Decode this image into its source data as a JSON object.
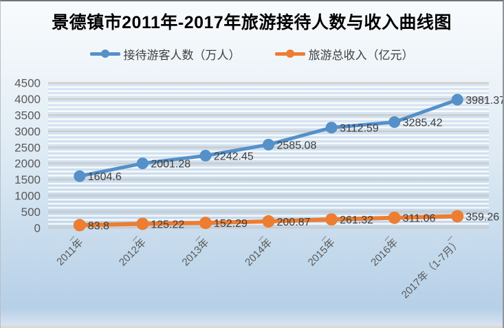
{
  "title": "景德镇市2011年-2017年旅游接待人数与收入曲线图",
  "legend": [
    {
      "label": "接待游客人数（万人）"
    },
    {
      "label": "旅游总收入（亿元）"
    }
  ],
  "colors": {
    "visitors_series": "#5590C9",
    "revenue_series": "#ED7D31",
    "axis_text": "#595959",
    "data_label_text": "#3d3d3d",
    "gridline": "#ccc9c2"
  },
  "chart_data": {
    "type": "line",
    "title": "景德镇市2011年-2017年旅游接待人数与收入曲线图",
    "categories": [
      "2011年",
      "2012年",
      "2013年",
      "2014年",
      "2015年",
      "2016年",
      "2017年（1-7月）"
    ],
    "series": [
      {
        "name": "接待游客人数（万人）",
        "color": "#5590C9",
        "values": [
          1604.6,
          2001.28,
          2242.45,
          2585.08,
          3112.59,
          3285.42,
          3981.37
        ],
        "labels": [
          "1604.6",
          "2001.28",
          "2242.45",
          "2585.08",
          "3112.59",
          "3285.42",
          "3981.37"
        ]
      },
      {
        "name": "旅游总收入（亿元）",
        "color": "#ED7D31",
        "values": [
          83.8,
          125.22,
          152.29,
          200.87,
          261.32,
          311.06,
          359.26
        ],
        "labels": [
          "83.8",
          "125.22",
          "152.29",
          "200.87",
          "261.32",
          "311.06",
          "359.26"
        ]
      }
    ],
    "xlabel": "",
    "ylabel": "",
    "ylim": [
      0,
      4500
    ],
    "ytick_step": 500,
    "grid": true,
    "legend_position": "top",
    "x_tick_label_rotation": -45
  }
}
